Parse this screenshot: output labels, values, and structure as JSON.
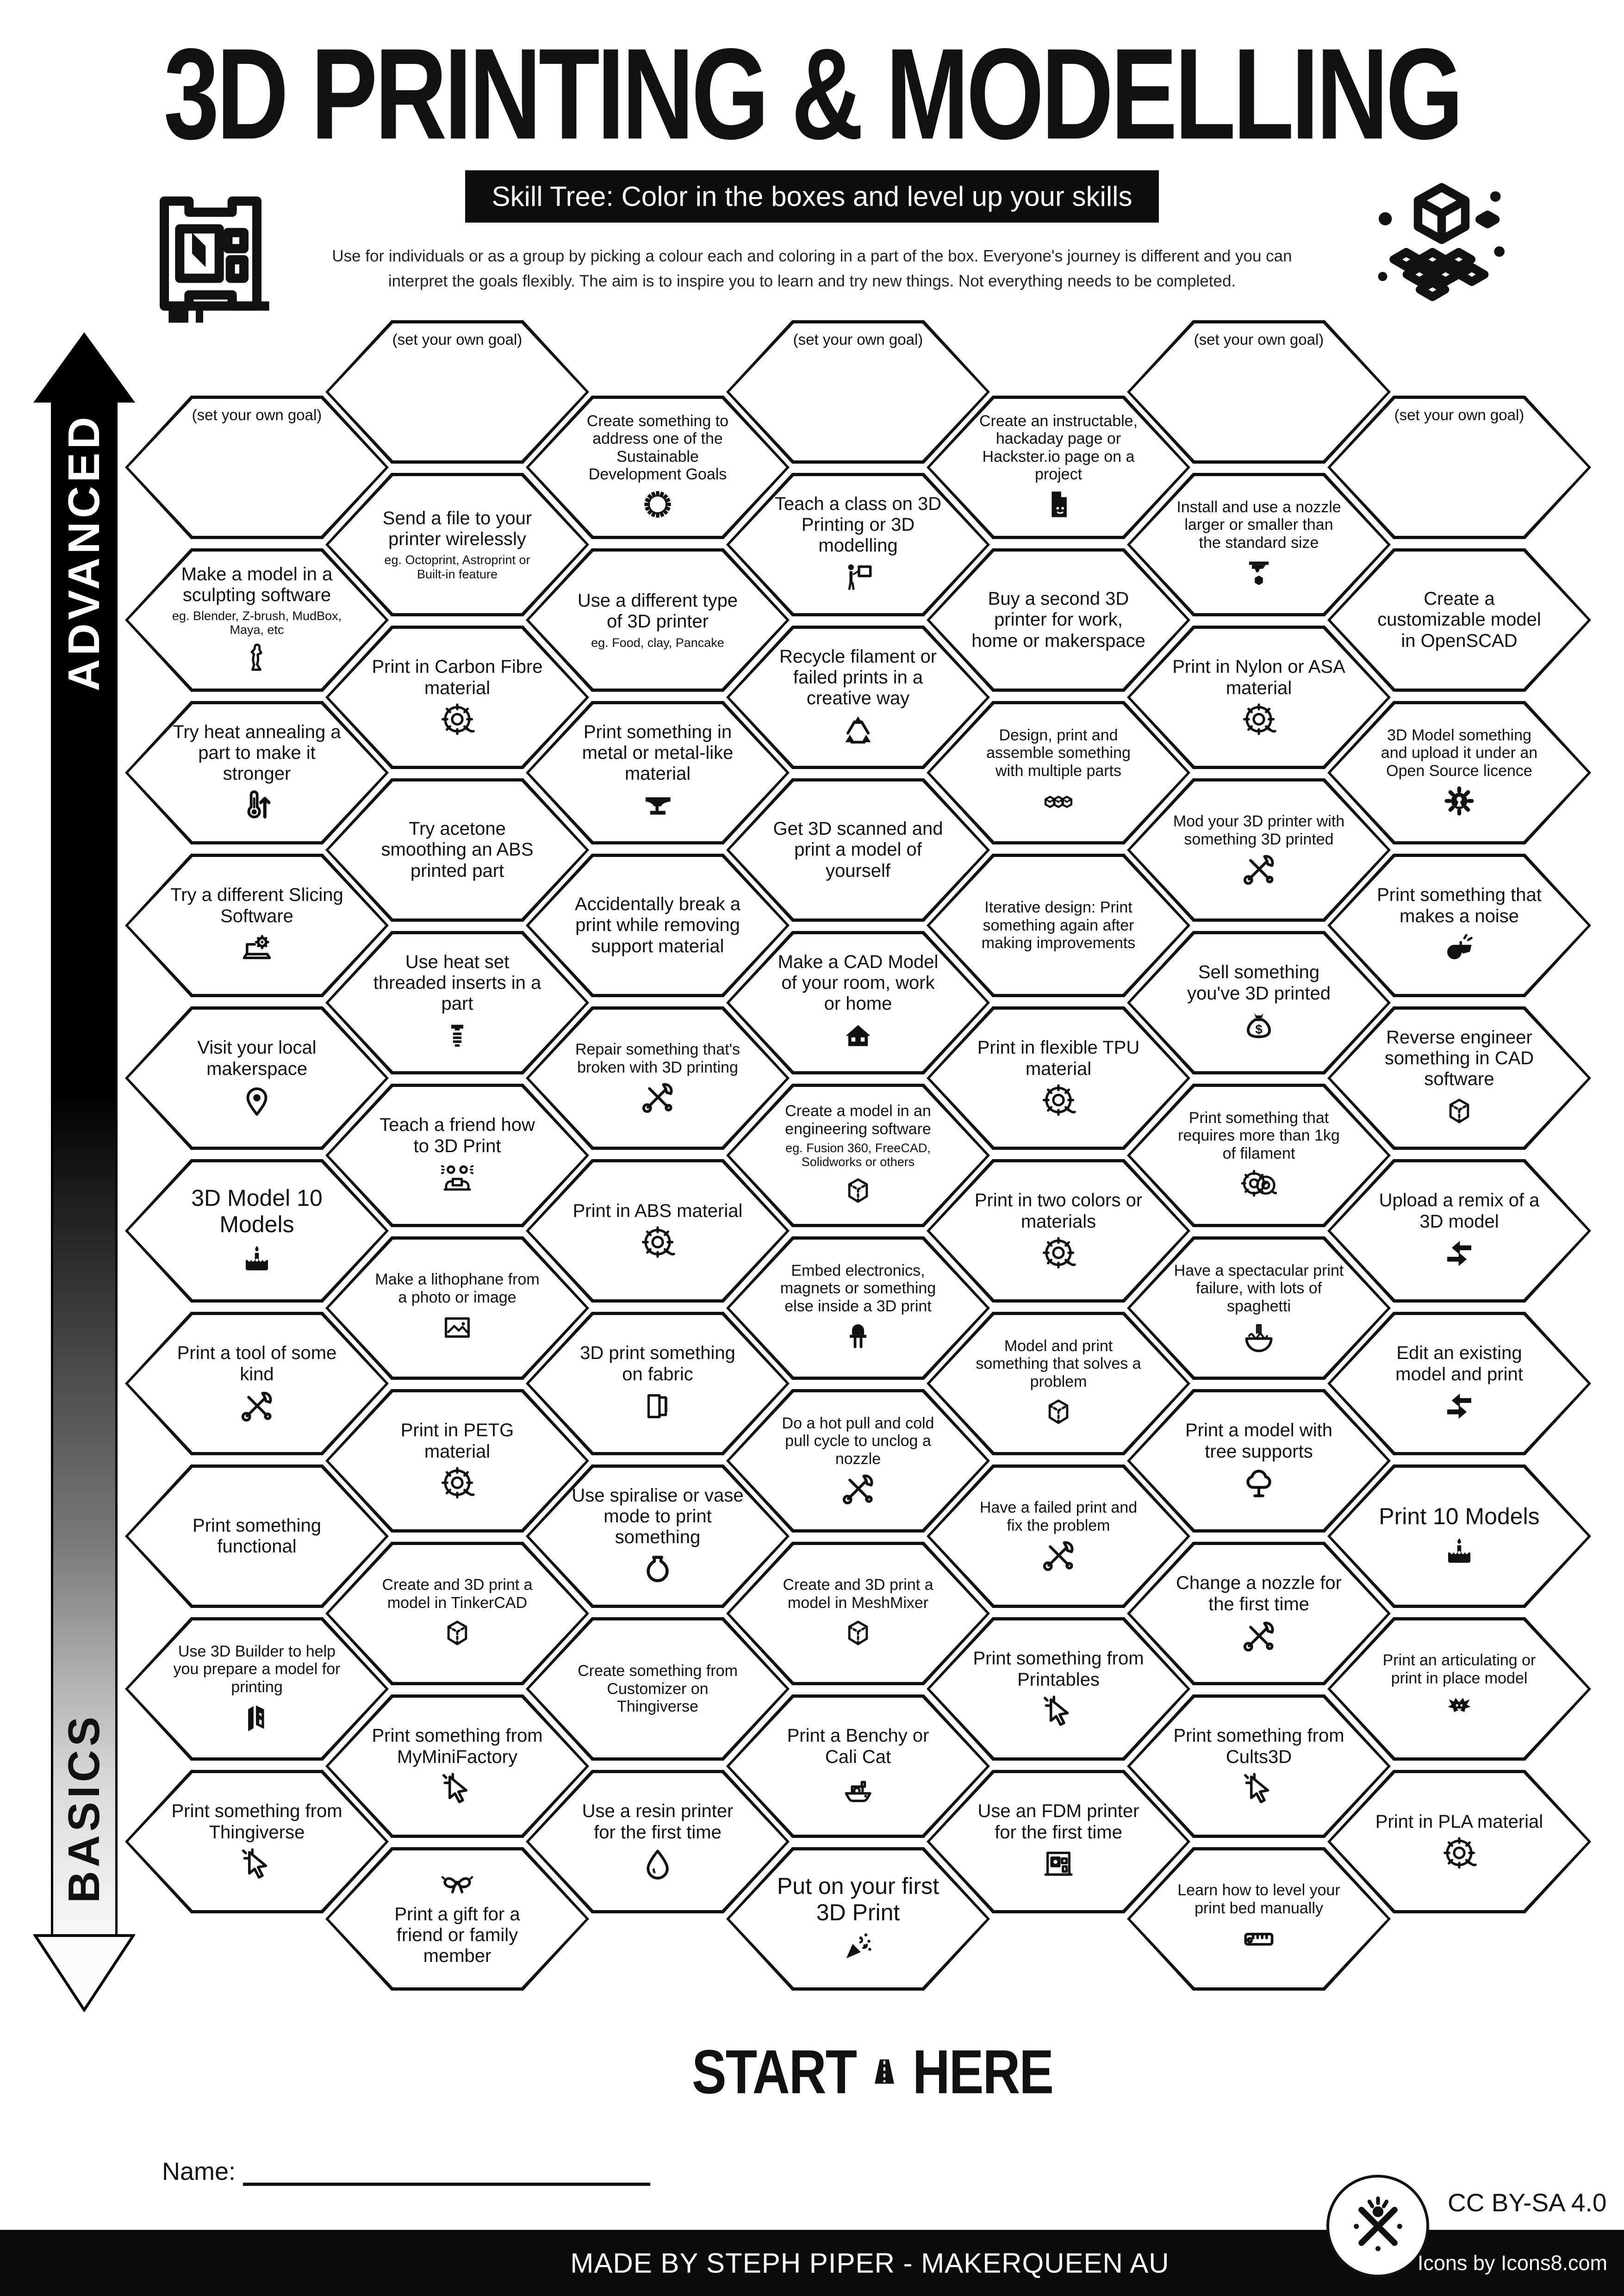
{
  "header": {
    "title": "3D PRINTING & MODELLING",
    "banner": "Skill Tree:  Color in the boxes and level up your skills",
    "description_line1": "Use for individuals or as a group by picking a colour each and coloring in a part of the box.  Everyone's journey is different and you can",
    "description_line2": "interpret the goals flexibly.  The aim is to inspire you to learn and try new things. Not everything needs to be completed.",
    "left_logo_icon": "printer-3d-logo-icon",
    "right_logo_icon": "cube-lattice-icon"
  },
  "axis": {
    "top_label": "ADVANCED",
    "bottom_label": "BASICS"
  },
  "start": {
    "start_label": "START",
    "here_label": "HERE",
    "road_icon": "road-icon"
  },
  "name_field": {
    "label": "Name:"
  },
  "footer": {
    "credit": "MADE BY STEPH PIPER  -  MAKERQUEEN AU",
    "icons_credit": "Icons by Icons8.com",
    "license": "CC BY-SA 4.0",
    "badge_icon": "makerqueen-badge-icon"
  },
  "colors": {
    "ink": "#111111",
    "paper": "#ffffff"
  },
  "hex_grid": {
    "columns": [
      {
        "hexes": [
          {
            "label": "(set your own goal)",
            "goal": true
          },
          {
            "label": "Make a model in a sculpting software",
            "sub": "eg. Blender, Z-brush, MudBox, Maya, etc",
            "icon": "statue-icon"
          },
          {
            "label": "Try heat annealing a part to make it stronger",
            "icon": "thermometer-icon"
          },
          {
            "label": "Try a different Slicing Software",
            "icon": "laptop-gear-icon"
          },
          {
            "label": "Visit your local makerspace",
            "icon": "map-pin-icon"
          },
          {
            "label": "3D Model 10 Models",
            "lg": true,
            "icon": "cake-icon"
          },
          {
            "label": "Print a tool of some kind",
            "icon": "tools-icon"
          },
          {
            "label": "Print something functional"
          },
          {
            "label": "Use 3D Builder to help you prepare a model for printing",
            "sm": true,
            "icon": "builder-icon"
          },
          {
            "label": "Print something from Thingiverse",
            "icon": "cursor-icon"
          }
        ]
      },
      {
        "hexes": [
          {
            "label": "(set your own goal)",
            "goal": true
          },
          {
            "label": "Send a file to your printer wirelessly",
            "sub": "eg. Octoprint, Astroprint or Built-in feature"
          },
          {
            "label": "Print in Carbon Fibre material",
            "icon": "spool-icon"
          },
          {
            "label": "Try acetone smoothing an ABS printed part"
          },
          {
            "label": "Use heat set threaded inserts in a part",
            "icon": "insert-icon"
          },
          {
            "label": "Teach a friend how to 3D Print",
            "icon": "friends-icon"
          },
          {
            "label": "Make a lithophane from a photo or image",
            "sm": true,
            "icon": "picture-icon"
          },
          {
            "label": "Print in PETG material",
            "icon": "spool-icon"
          },
          {
            "label": "Create and 3D print a model in TinkerCAD",
            "sm": true,
            "icon": "cube-icon"
          },
          {
            "label": "Print something from MyMiniFactory",
            "icon": "cursor-icon"
          },
          {
            "label": "Print a gift for a friend or family member",
            "icon": "bow-icon",
            "icon_top": true
          }
        ]
      },
      {
        "hexes": [
          {
            "label": "Create something to address one of the Sustainable Development Goals",
            "sm": true,
            "icon": "sdg-icon"
          },
          {
            "label": "Use a different type of 3D printer",
            "sub": "eg. Food, clay, Pancake"
          },
          {
            "label": "Print something in metal or metal-like material",
            "icon": "anvil-icon"
          },
          {
            "label": "Accidentally break a print while removing support material"
          },
          {
            "label": "Repair something that's broken with 3D printing",
            "sm": true,
            "icon": "tools-icon"
          },
          {
            "label": "Print in ABS material",
            "icon": "spool-icon"
          },
          {
            "label": "3D print something on fabric",
            "icon": "fabric-icon"
          },
          {
            "label": "Use spiralise or vase mode to print something",
            "icon": "vase-icon"
          },
          {
            "label": "Create something from Customizer on Thingiverse",
            "sm": true
          },
          {
            "label": "Use a resin printer for the first time",
            "icon": "droplet-icon"
          }
        ]
      },
      {
        "hexes": [
          {
            "label": "(set your own goal)",
            "goal": true
          },
          {
            "label": "Teach a class on 3D Printing or 3D modelling",
            "icon": "teacher-icon"
          },
          {
            "label": "Recycle filament or failed prints in a creative way",
            "icon": "recycle-icon"
          },
          {
            "label": "Get 3D scanned and print a model of yourself"
          },
          {
            "label": "Make a CAD Model of your room, work or home",
            "icon": "house-icon"
          },
          {
            "label": "Create a model in an engineering software",
            "sub": "eg. Fusion 360, FreeCAD, Solidworks or others",
            "sm": true,
            "icon": "cube-icon"
          },
          {
            "label": "Embed electronics, magnets or something else inside a 3D print",
            "sm": true,
            "icon": "led-icon"
          },
          {
            "label": "Do a hot pull and cold pull cycle to unclog a nozzle",
            "sm": true,
            "icon": "tools-icon"
          },
          {
            "label": "Create and 3D print a model in MeshMixer",
            "sm": true,
            "icon": "cube-icon"
          },
          {
            "label": "Print a Benchy or Cali Cat",
            "icon": "benchy-icon"
          },
          {
            "label": "Put on your first 3D Print",
            "lg": true,
            "icon": "party-icon"
          }
        ]
      },
      {
        "hexes": [
          {
            "label": "Create an instructable, hackaday page or Hackster.io page on a project",
            "sm": true,
            "icon": "document-icon"
          },
          {
            "label": "Buy a second 3D printer for work, home or makerspace"
          },
          {
            "label": "Design, print and assemble something with multiple parts",
            "sm": true,
            "icon": "cubes-icon"
          },
          {
            "label": "Iterative design: Print something again after making improvements",
            "sm": true
          },
          {
            "label": "Print in flexible TPU material",
            "icon": "spool-icon"
          },
          {
            "label": "Print in two colors or materials",
            "icon": "spool-icon"
          },
          {
            "label": "Model and print something that solves a problem",
            "sm": true,
            "icon": "cube-icon"
          },
          {
            "label": "Have a failed print and fix the problem",
            "sm": true,
            "icon": "tools-icon"
          },
          {
            "label": "Print something from Printables",
            "icon": "cursor-icon"
          },
          {
            "label": "Use an FDM printer for the first time",
            "icon": "printer-icon"
          }
        ]
      },
      {
        "hexes": [
          {
            "label": "(set your own goal)",
            "goal": true
          },
          {
            "label": "Install and use a nozzle larger or smaller than the standard size",
            "sm": true,
            "icon": "nozzle-icon"
          },
          {
            "label": "Print in Nylon or ASA material",
            "icon": "spool-icon"
          },
          {
            "label": "Mod your 3D printer with something 3D printed",
            "sm": true,
            "icon": "tools-icon"
          },
          {
            "label": "Sell something you've 3D printed",
            "icon": "moneybag-icon"
          },
          {
            "label": "Print something that requires more than 1kg of filament",
            "sm": true,
            "icon": "spools-icon"
          },
          {
            "label": "Have a spectacular print failure, with lots of spaghetti",
            "sm": true,
            "icon": "spaghetti-icon"
          },
          {
            "label": "Print a model with tree supports",
            "icon": "tree-icon"
          },
          {
            "label": "Change a nozzle for the first time",
            "icon": "tools-icon"
          },
          {
            "label": "Print something from Cults3D",
            "icon": "cursor-icon"
          },
          {
            "label": "Learn how to level your print bed manually",
            "sm": true,
            "icon": "ruler-icon"
          }
        ]
      },
      {
        "hexes": [
          {
            "label": "(set your own goal)",
            "goal": true
          },
          {
            "label": "Create a customizable model in OpenSCAD"
          },
          {
            "label": "3D Model something and upload it under an Open Source licence",
            "sm": true,
            "icon": "os-gear-icon"
          },
          {
            "label": "Print something that makes a noise",
            "icon": "whistle-icon"
          },
          {
            "label": "Reverse engineer something in CAD software",
            "icon": "cube-icon"
          },
          {
            "label": "Upload a remix of a 3D model",
            "icon": "remix-icon"
          },
          {
            "label": "Edit an existing model and print",
            "icon": "remix-icon"
          },
          {
            "label": "Print 10 Models",
            "lg": true,
            "icon": "cake-icon"
          },
          {
            "label": "Print an articulating or print in place model",
            "sm": true,
            "icon": "dragon-icon"
          },
          {
            "label": "Print in PLA material",
            "icon": "spool-icon"
          }
        ]
      }
    ]
  }
}
